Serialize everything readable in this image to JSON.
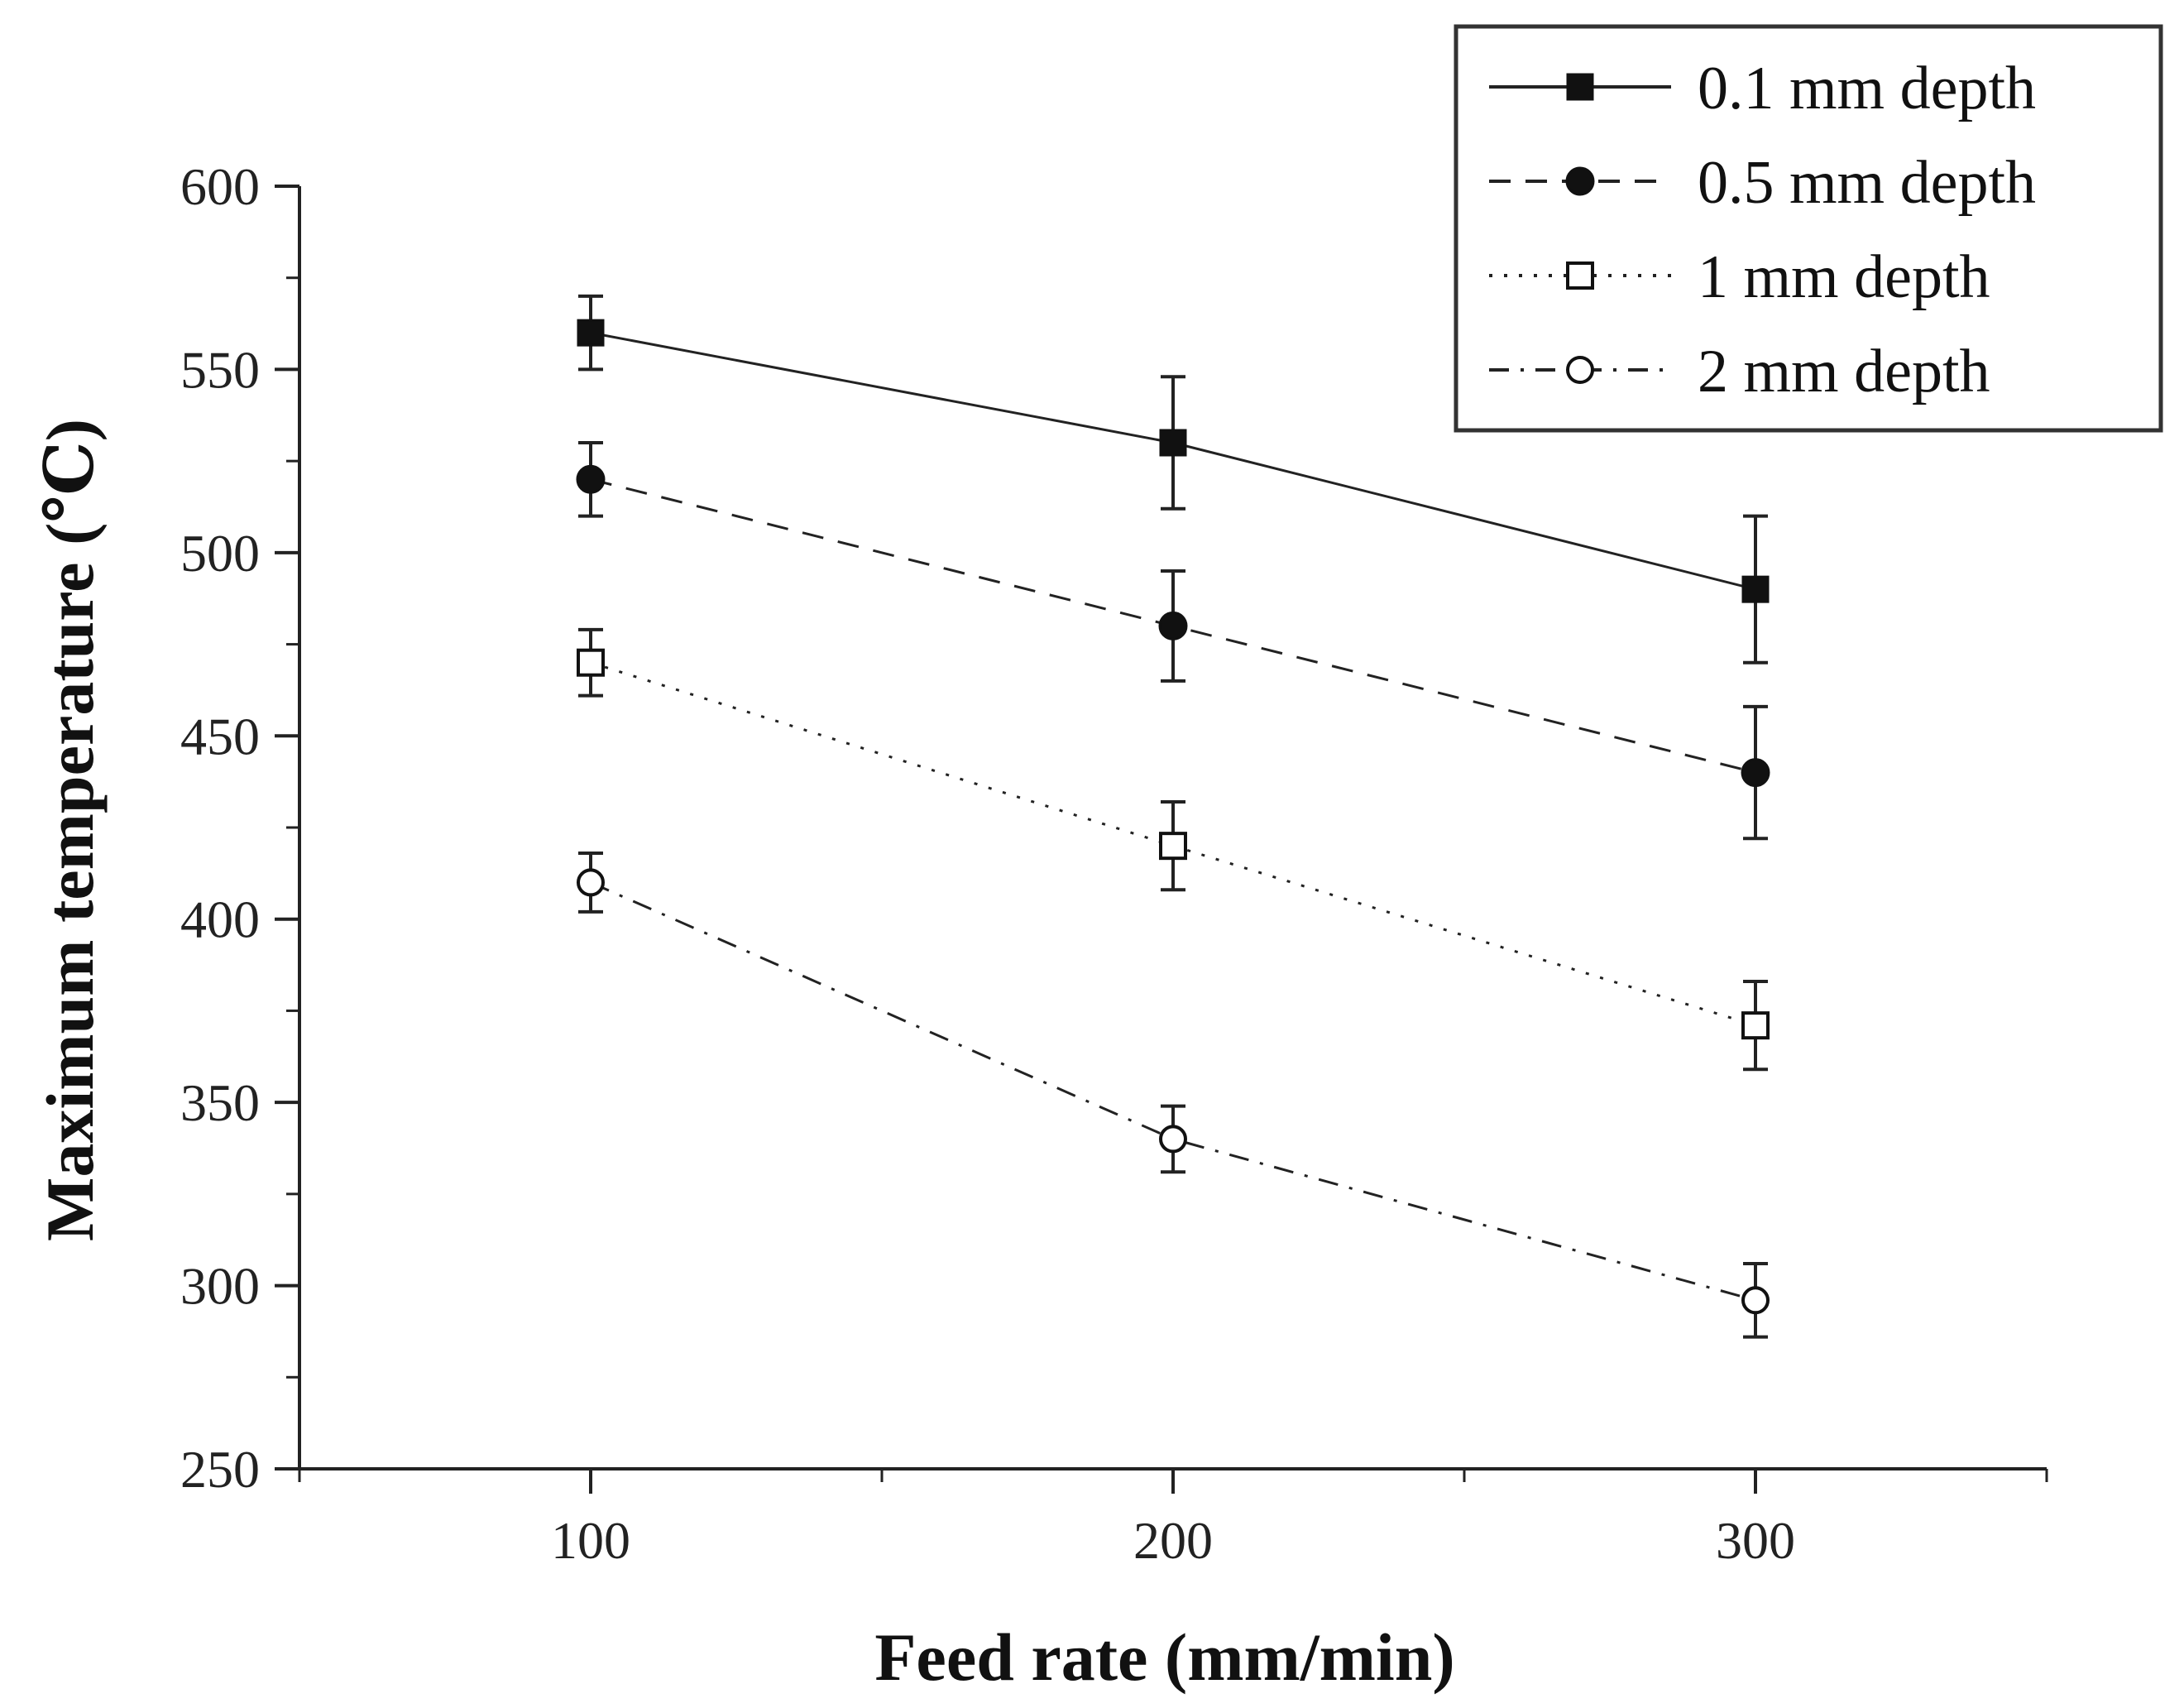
{
  "chart_data": {
    "type": "line",
    "title": "",
    "xlabel": "Feed rate (mm/min)",
    "ylabel": "Maximum temperature (℃)",
    "xlim": [
      50,
      350
    ],
    "ylim": [
      250,
      600
    ],
    "xticks": [
      100,
      200,
      300
    ],
    "xminor": [
      50,
      150,
      250,
      350
    ],
    "yticks": [
      250,
      300,
      350,
      400,
      450,
      500,
      550,
      600
    ],
    "yminor": [
      275,
      325,
      375,
      425,
      475,
      525,
      575
    ],
    "grid": false,
    "legend_position": "top-right",
    "x": [
      100,
      200,
      300
    ],
    "series": [
      {
        "name": "0.1 mm depth",
        "marker": "square-filled",
        "line": "solid",
        "values": [
          560,
          530,
          490
        ],
        "errors": [
          10,
          18,
          20
        ]
      },
      {
        "name": "0.5 mm depth",
        "marker": "circle-filled",
        "line": "dashed",
        "values": [
          520,
          480,
          440
        ],
        "errors": [
          10,
          15,
          18
        ]
      },
      {
        "name": "1 mm depth",
        "marker": "square-open",
        "line": "dotted",
        "values": [
          470,
          420,
          371
        ],
        "errors": [
          9,
          12,
          12
        ]
      },
      {
        "name": "2 mm depth",
        "marker": "circle-open",
        "line": "dash-dot",
        "values": [
          410,
          340,
          296
        ],
        "errors": [
          8,
          9,
          10
        ]
      }
    ]
  }
}
